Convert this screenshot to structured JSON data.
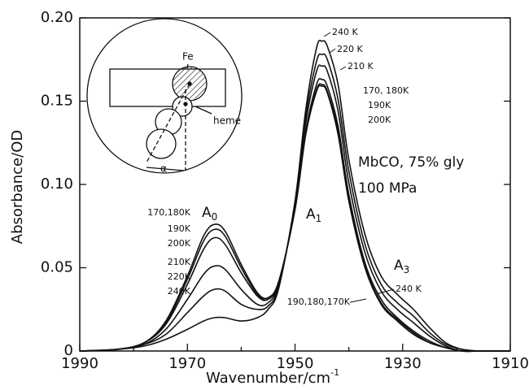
{
  "chart_data": {
    "type": "line",
    "x_label": {
      "text": "Wavenumber/cm",
      "sup": "-1"
    },
    "y_label": "Absorbance/OD",
    "x": [
      1990,
      1983,
      1978,
      1974,
      1970,
      1967,
      1965,
      1963,
      1960,
      1957,
      1955,
      1953,
      1950,
      1948,
      1946,
      1945,
      1944,
      1942,
      1940,
      1937,
      1934,
      1931,
      1928,
      1925,
      1922,
      1919,
      1916,
      1913,
      1910
    ],
    "series": [
      {
        "color": "#111",
        "values": [
          0,
          0.001,
          0.005,
          0.018,
          0.045,
          0.069,
          0.076,
          0.072,
          0.052,
          0.035,
          0.032,
          0.042,
          0.085,
          0.13,
          0.156,
          0.159,
          0.155,
          0.13,
          0.09,
          0.05,
          0.028,
          0.018,
          0.01,
          0.005,
          0.002,
          0,
          0,
          0,
          0
        ]
      },
      {
        "color": "#111",
        "values": [
          0,
          0.001,
          0.005,
          0.017,
          0.043,
          0.066,
          0.073,
          0.069,
          0.05,
          0.034,
          0.032,
          0.042,
          0.085,
          0.131,
          0.157,
          0.16,
          0.156,
          0.132,
          0.091,
          0.051,
          0.029,
          0.019,
          0.011,
          0.005,
          0.002,
          0,
          0,
          0,
          0
        ]
      },
      {
        "color": "#111",
        "values": [
          0,
          0.001,
          0.005,
          0.016,
          0.04,
          0.061,
          0.068,
          0.064,
          0.047,
          0.033,
          0.031,
          0.041,
          0.086,
          0.132,
          0.16,
          0.163,
          0.159,
          0.135,
          0.094,
          0.053,
          0.031,
          0.02,
          0.012,
          0.006,
          0.002,
          0,
          0,
          0,
          0
        ]
      },
      {
        "color": "#111",
        "values": [
          0,
          0.001,
          0.004,
          0.013,
          0.031,
          0.046,
          0.051,
          0.049,
          0.037,
          0.028,
          0.029,
          0.04,
          0.087,
          0.137,
          0.168,
          0.171,
          0.168,
          0.144,
          0.101,
          0.059,
          0.036,
          0.025,
          0.017,
          0.009,
          0.003,
          0,
          0,
          0,
          0
        ]
      },
      {
        "color": "#111",
        "values": [
          0,
          0.001,
          0.004,
          0.01,
          0.023,
          0.033,
          0.037,
          0.036,
          0.028,
          0.025,
          0.027,
          0.039,
          0.089,
          0.141,
          0.174,
          0.178,
          0.175,
          0.151,
          0.108,
          0.064,
          0.04,
          0.029,
          0.021,
          0.011,
          0.004,
          0.001,
          0,
          0,
          0
        ]
      },
      {
        "color": "#111",
        "values": [
          0,
          0.001,
          0.003,
          0.007,
          0.013,
          0.018,
          0.02,
          0.02,
          0.018,
          0.02,
          0.025,
          0.038,
          0.09,
          0.145,
          0.182,
          0.186,
          0.183,
          0.16,
          0.115,
          0.07,
          0.045,
          0.034,
          0.025,
          0.014,
          0.005,
          0.001,
          0,
          0,
          0
        ]
      }
    ],
    "xlim": [
      1990,
      1910
    ],
    "xticks": [
      1990,
      1970,
      1950,
      1930,
      1910
    ],
    "xminor": [
      1980,
      1960,
      1940,
      1920
    ],
    "ylim": [
      0,
      0.2
    ],
    "yticks": [
      0,
      0.05,
      {
        "value": 0.1,
        "label": "0.10"
      },
      0.15,
      {
        "value": 0.2,
        "label": "0.20"
      }
    ],
    "peaks": [
      {
        "main": "A",
        "sub": "0"
      },
      {
        "main": "A",
        "sub": "1"
      },
      {
        "main": "A",
        "sub": "3"
      }
    ],
    "annotations": [
      "240 K",
      "220 K",
      "210 K",
      "170, 180K",
      "190K",
      "200K",
      "MbCO, 75% gly",
      "100 MPa",
      "170,180K",
      "190K",
      "200K",
      "210K",
      "220K",
      "240K",
      "240 K",
      "190,180,170K"
    ],
    "inset_labels": [
      "Fe",
      "heme",
      "α"
    ]
  }
}
